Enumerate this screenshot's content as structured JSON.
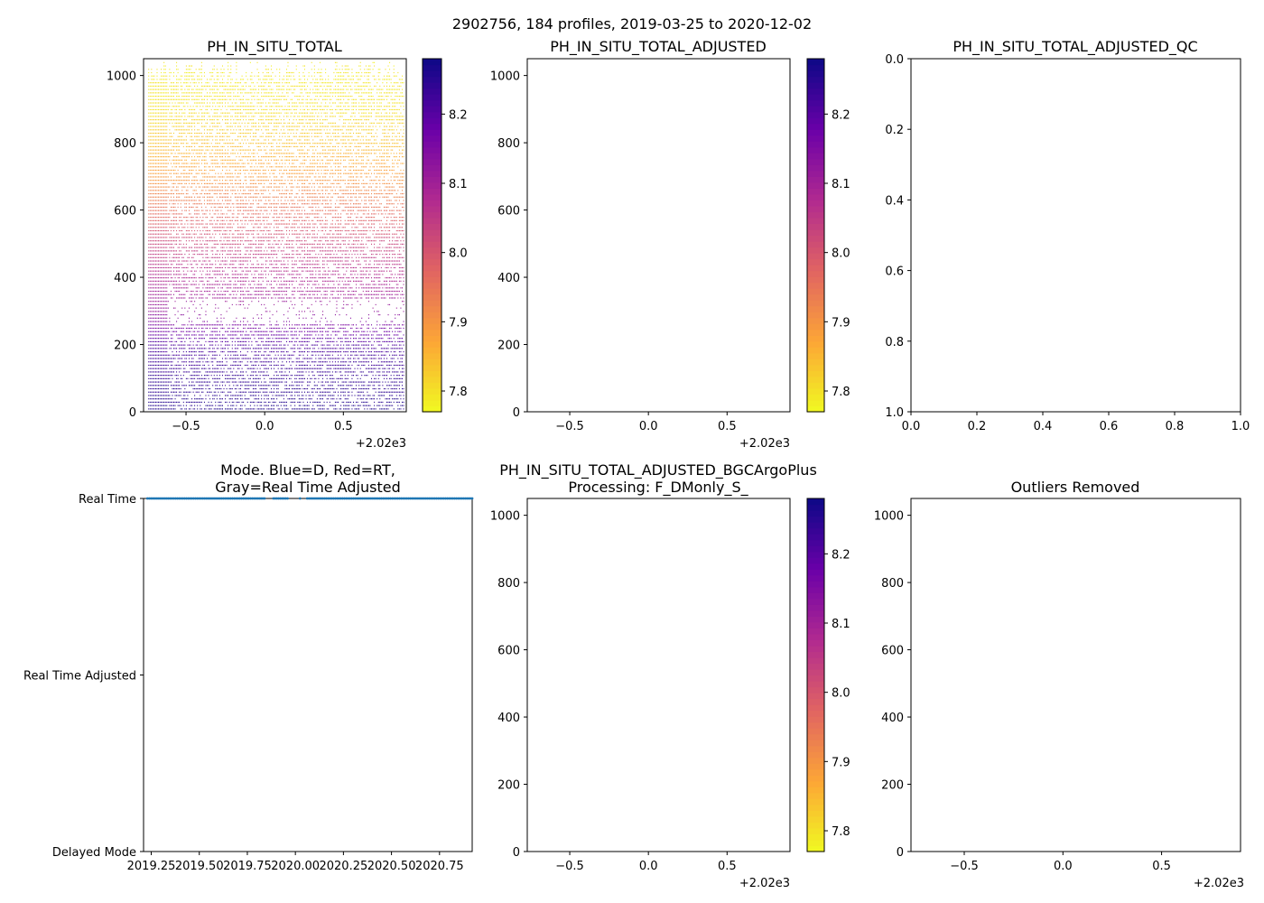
{
  "figure_title": "2902756, 184 profiles, 2019-03-25 to 2020-12-02",
  "colormap": [
    "#f0f921",
    "#fca636",
    "#e16462",
    "#b12a90",
    "#6a00a8",
    "#0d0887"
  ],
  "series_color": "#1f77b4",
  "chart_data": [
    {
      "id": "ph_in_situ_total",
      "type": "heatmap",
      "title": [
        "PH_IN_SITU_TOTAL"
      ],
      "xlim": [
        -0.77,
        0.9
      ],
      "ylim": [
        1050,
        0
      ],
      "xticks": [
        -0.5,
        0.0,
        0.5
      ],
      "xtick_labels": [
        "−0.5",
        "0.0",
        "0.5"
      ],
      "x_offset_label": "+2.02e3",
      "yticks": [
        0,
        200,
        400,
        600,
        800,
        1000
      ],
      "ytick_labels": [
        "0",
        "200",
        "400",
        "600",
        "800",
        "1000"
      ],
      "colorbar": {
        "range": [
          7.77,
          8.28
        ],
        "ticks": [
          7.8,
          7.9,
          8.0,
          8.1,
          8.2
        ],
        "tick_labels": [
          "7.8",
          "7.9",
          "8.0",
          "8.1",
          "8.2"
        ]
      },
      "profile_x_start": -0.74,
      "profile_x_end": 0.88,
      "profile_count": 184,
      "sample_depth_step": 10,
      "profile": {
        "depth": [
          0,
          100,
          200,
          250,
          300,
          350,
          400,
          500,
          600,
          700,
          800,
          900,
          1000,
          1050
        ],
        "ph": [
          8.26,
          8.24,
          8.21,
          8.16,
          8.12,
          8.1,
          8.08,
          8.03,
          7.96,
          7.89,
          7.84,
          7.8,
          7.79,
          7.79
        ]
      },
      "dense_until": -0.62,
      "missing_band_depths": [
        260,
        340
      ]
    },
    {
      "id": "ph_in_situ_total_adjusted",
      "type": "heatmap",
      "title": [
        "PH_IN_SITU_TOTAL_ADJUSTED"
      ],
      "xlim": [
        -0.77,
        0.9
      ],
      "ylim": [
        1050,
        0
      ],
      "xticks": [
        -0.5,
        0.0,
        0.5
      ],
      "xtick_labels": [
        "−0.5",
        "0.0",
        "0.5"
      ],
      "x_offset_label": "+2.02e3",
      "yticks": [
        0,
        200,
        400,
        600,
        800,
        1000
      ],
      "ytick_labels": [
        "0",
        "200",
        "400",
        "600",
        "800",
        "1000"
      ],
      "colorbar": {
        "range": [
          7.77,
          8.28
        ],
        "ticks": [
          7.8,
          7.9,
          8.0,
          8.1,
          8.2
        ],
        "tick_labels": [
          "7.8",
          "7.9",
          "8.0",
          "8.1",
          "8.2"
        ]
      },
      "values": []
    },
    {
      "id": "ph_in_situ_total_adjusted_qc",
      "type": "scatter",
      "title": [
        "PH_IN_SITU_TOTAL_ADJUSTED_QC"
      ],
      "xlim": [
        0,
        1
      ],
      "ylim": [
        0,
        1
      ],
      "xticks": [
        0.0,
        0.2,
        0.4,
        0.6,
        0.8,
        1.0
      ],
      "xtick_labels": [
        "0.0",
        "0.2",
        "0.4",
        "0.6",
        "0.8",
        "1.0"
      ],
      "yticks": [
        0.0,
        0.2,
        0.4,
        0.6,
        0.8,
        1.0
      ],
      "ytick_labels": [
        "0.0",
        "0.2",
        "0.4",
        "0.6",
        "0.8",
        "1.0"
      ],
      "values": []
    },
    {
      "id": "data_mode",
      "type": "scatter",
      "title": [
        "Mode. Blue=D, Red=RT,",
        "Gray=Real Time Adjusted"
      ],
      "xlim": [
        2019.21,
        2020.92
      ],
      "ylim": [
        0,
        2
      ],
      "xticks": [
        2019.25,
        2019.5,
        2019.75,
        2020.0,
        2020.25,
        2020.5,
        2020.75
      ],
      "xtick_labels": [
        "2019.25",
        "2019.50",
        "2019.75",
        "2020.00",
        "2020.25",
        "2020.50",
        "2020.75"
      ],
      "yticks": [
        0,
        1,
        2
      ],
      "ytick_labels": [
        "Real Time",
        "Real Time Adjusted",
        "Delayed Mode"
      ],
      "series": [
        {
          "name": "Real Time",
          "mode_level": 0,
          "x_ranges": [
            [
              2019.23,
              2020.92
            ]
          ],
          "gaps": [
            [
              2019.84,
              2019.88
            ],
            [
              2019.96,
              2020.02
            ],
            [
              2020.03,
              2020.055
            ]
          ],
          "count": 184
        }
      ]
    },
    {
      "id": "ph_adjusted_bgcargoplus",
      "type": "heatmap",
      "title": [
        "PH_IN_SITU_TOTAL_ADJUSTED_BGCArgoPlus",
        "Processing: F_DMonly_S_"
      ],
      "xlim": [
        -0.77,
        0.9
      ],
      "ylim": [
        1050,
        0
      ],
      "xticks": [
        -0.5,
        0.0,
        0.5
      ],
      "xtick_labels": [
        "−0.5",
        "0.0",
        "0.5"
      ],
      "x_offset_label": "+2.02e3",
      "yticks": [
        0,
        200,
        400,
        600,
        800,
        1000
      ],
      "ytick_labels": [
        "0",
        "200",
        "400",
        "600",
        "800",
        "1000"
      ],
      "colorbar": {
        "range": [
          7.77,
          8.28
        ],
        "ticks": [
          7.8,
          7.9,
          8.0,
          8.1,
          8.2
        ],
        "tick_labels": [
          "7.8",
          "7.9",
          "8.0",
          "8.1",
          "8.2"
        ]
      },
      "values": []
    },
    {
      "id": "outliers_removed",
      "type": "scatter",
      "title": [
        "Outliers Removed"
      ],
      "xlim": [
        -0.77,
        0.9
      ],
      "ylim": [
        1050,
        0
      ],
      "xticks": [
        -0.5,
        0.0,
        0.5
      ],
      "xtick_labels": [
        "−0.5",
        "0.0",
        "0.5"
      ],
      "x_offset_label": "+2.02e3",
      "yticks": [
        0,
        200,
        400,
        600,
        800,
        1000
      ],
      "ytick_labels": [
        "0",
        "200",
        "400",
        "600",
        "800",
        "1000"
      ],
      "values": []
    }
  ]
}
